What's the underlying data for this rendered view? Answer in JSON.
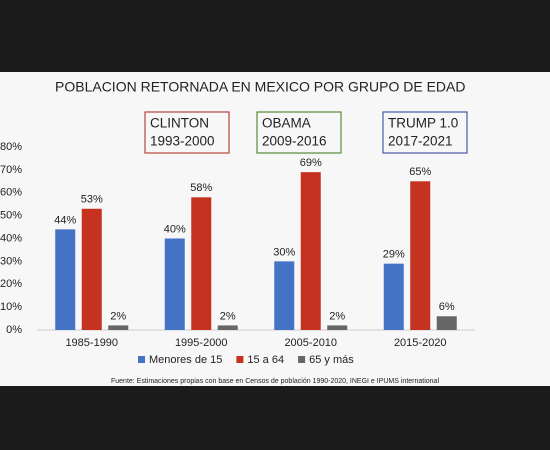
{
  "chart_data": {
    "type": "bar",
    "title": "POBLACION RETORNADA EN MEXICO POR GRUPO DE EDAD",
    "categories": [
      "1985-1990",
      "1995-2000",
      "2005-2010",
      "2015-2020"
    ],
    "series": [
      {
        "name": "Menores de 15",
        "color": "#4472c4",
        "values": [
          44,
          40,
          30,
          29
        ],
        "value_labels": [
          "44%",
          "40%",
          "30%",
          "29%"
        ]
      },
      {
        "name": "15 a 64",
        "color": "#c5321f",
        "values": [
          53,
          58,
          69,
          65
        ],
        "value_labels": [
          "53%",
          "58%",
          "69%",
          "65%"
        ]
      },
      {
        "name": "65 y más",
        "color": "#666666",
        "values": [
          2,
          2,
          2,
          6
        ],
        "value_labels": [
          "2%",
          "2%",
          "2%",
          "6%"
        ]
      }
    ],
    "ylim": [
      0,
      80
    ],
    "yticks": [
      {
        "value": 0,
        "label": "0%"
      },
      {
        "value": 10,
        "label": "10%"
      },
      {
        "value": 20,
        "label": "20%"
      },
      {
        "value": 30,
        "label": "30%"
      },
      {
        "value": 40,
        "label": "40%"
      },
      {
        "value": 50,
        "label": "50%"
      },
      {
        "value": 60,
        "label": "60%"
      },
      {
        "value": 70,
        "label": "70%"
      },
      {
        "value": 80,
        "label": "80%"
      }
    ],
    "grid": false,
    "legend": "bottom",
    "annotations": [
      {
        "text": "CLINTON",
        "subtext": "1993-2000",
        "color": "#b5473a"
      },
      {
        "text": "OBAMA",
        "subtext": "2009-2016",
        "color": "#5a8a3a"
      },
      {
        "text": "TRUMP 1.0",
        "subtext": "2017-2021",
        "color": "#4a5aa8"
      }
    ],
    "source": "Fuente: Estimaciones propias con base en Censos de población 1990-2020, INEGI e IPUMS international"
  }
}
